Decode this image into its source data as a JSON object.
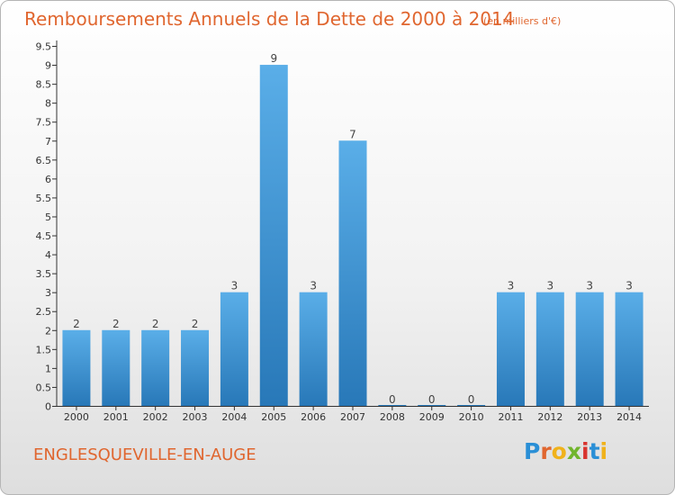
{
  "header": {
    "title": "Remboursements Annuels de la Dette de 2000 à 2014",
    "unit": "(en milliers d'€)"
  },
  "footer": {
    "commune": "ENGLESQUEVILLE-EN-AUGE",
    "brand": "Proxiti"
  },
  "colors": {
    "title": "#e0662f",
    "bar_light": "#5aaee8",
    "bar_dark": "#2878b8",
    "axis": "#333333",
    "grid": "#cccccc"
  },
  "chart_data": {
    "type": "bar",
    "categories": [
      "2000",
      "2001",
      "2002",
      "2003",
      "2004",
      "2005",
      "2006",
      "2007",
      "2008",
      "2009",
      "2010",
      "2011",
      "2012",
      "2013",
      "2014"
    ],
    "values": [
      2,
      2,
      2,
      2,
      3,
      9,
      3,
      7,
      0,
      0,
      0,
      3,
      3,
      3,
      3
    ],
    "data_labels": [
      "2",
      "2",
      "2",
      "2",
      "3",
      "9",
      "3",
      "7",
      "0",
      "0",
      "0",
      "3",
      "3",
      "3",
      "3"
    ],
    "y_ticks": [
      "0",
      "0.5",
      "1",
      "1.5",
      "2",
      "2.5",
      "3",
      "3.5",
      "4",
      "4.5",
      "5",
      "5.5",
      "6",
      "6.5",
      "7",
      "7.5",
      "8",
      "8.5",
      "9",
      "9.5"
    ],
    "ylim": [
      0,
      9.5
    ],
    "grid": false,
    "legend": "none"
  }
}
